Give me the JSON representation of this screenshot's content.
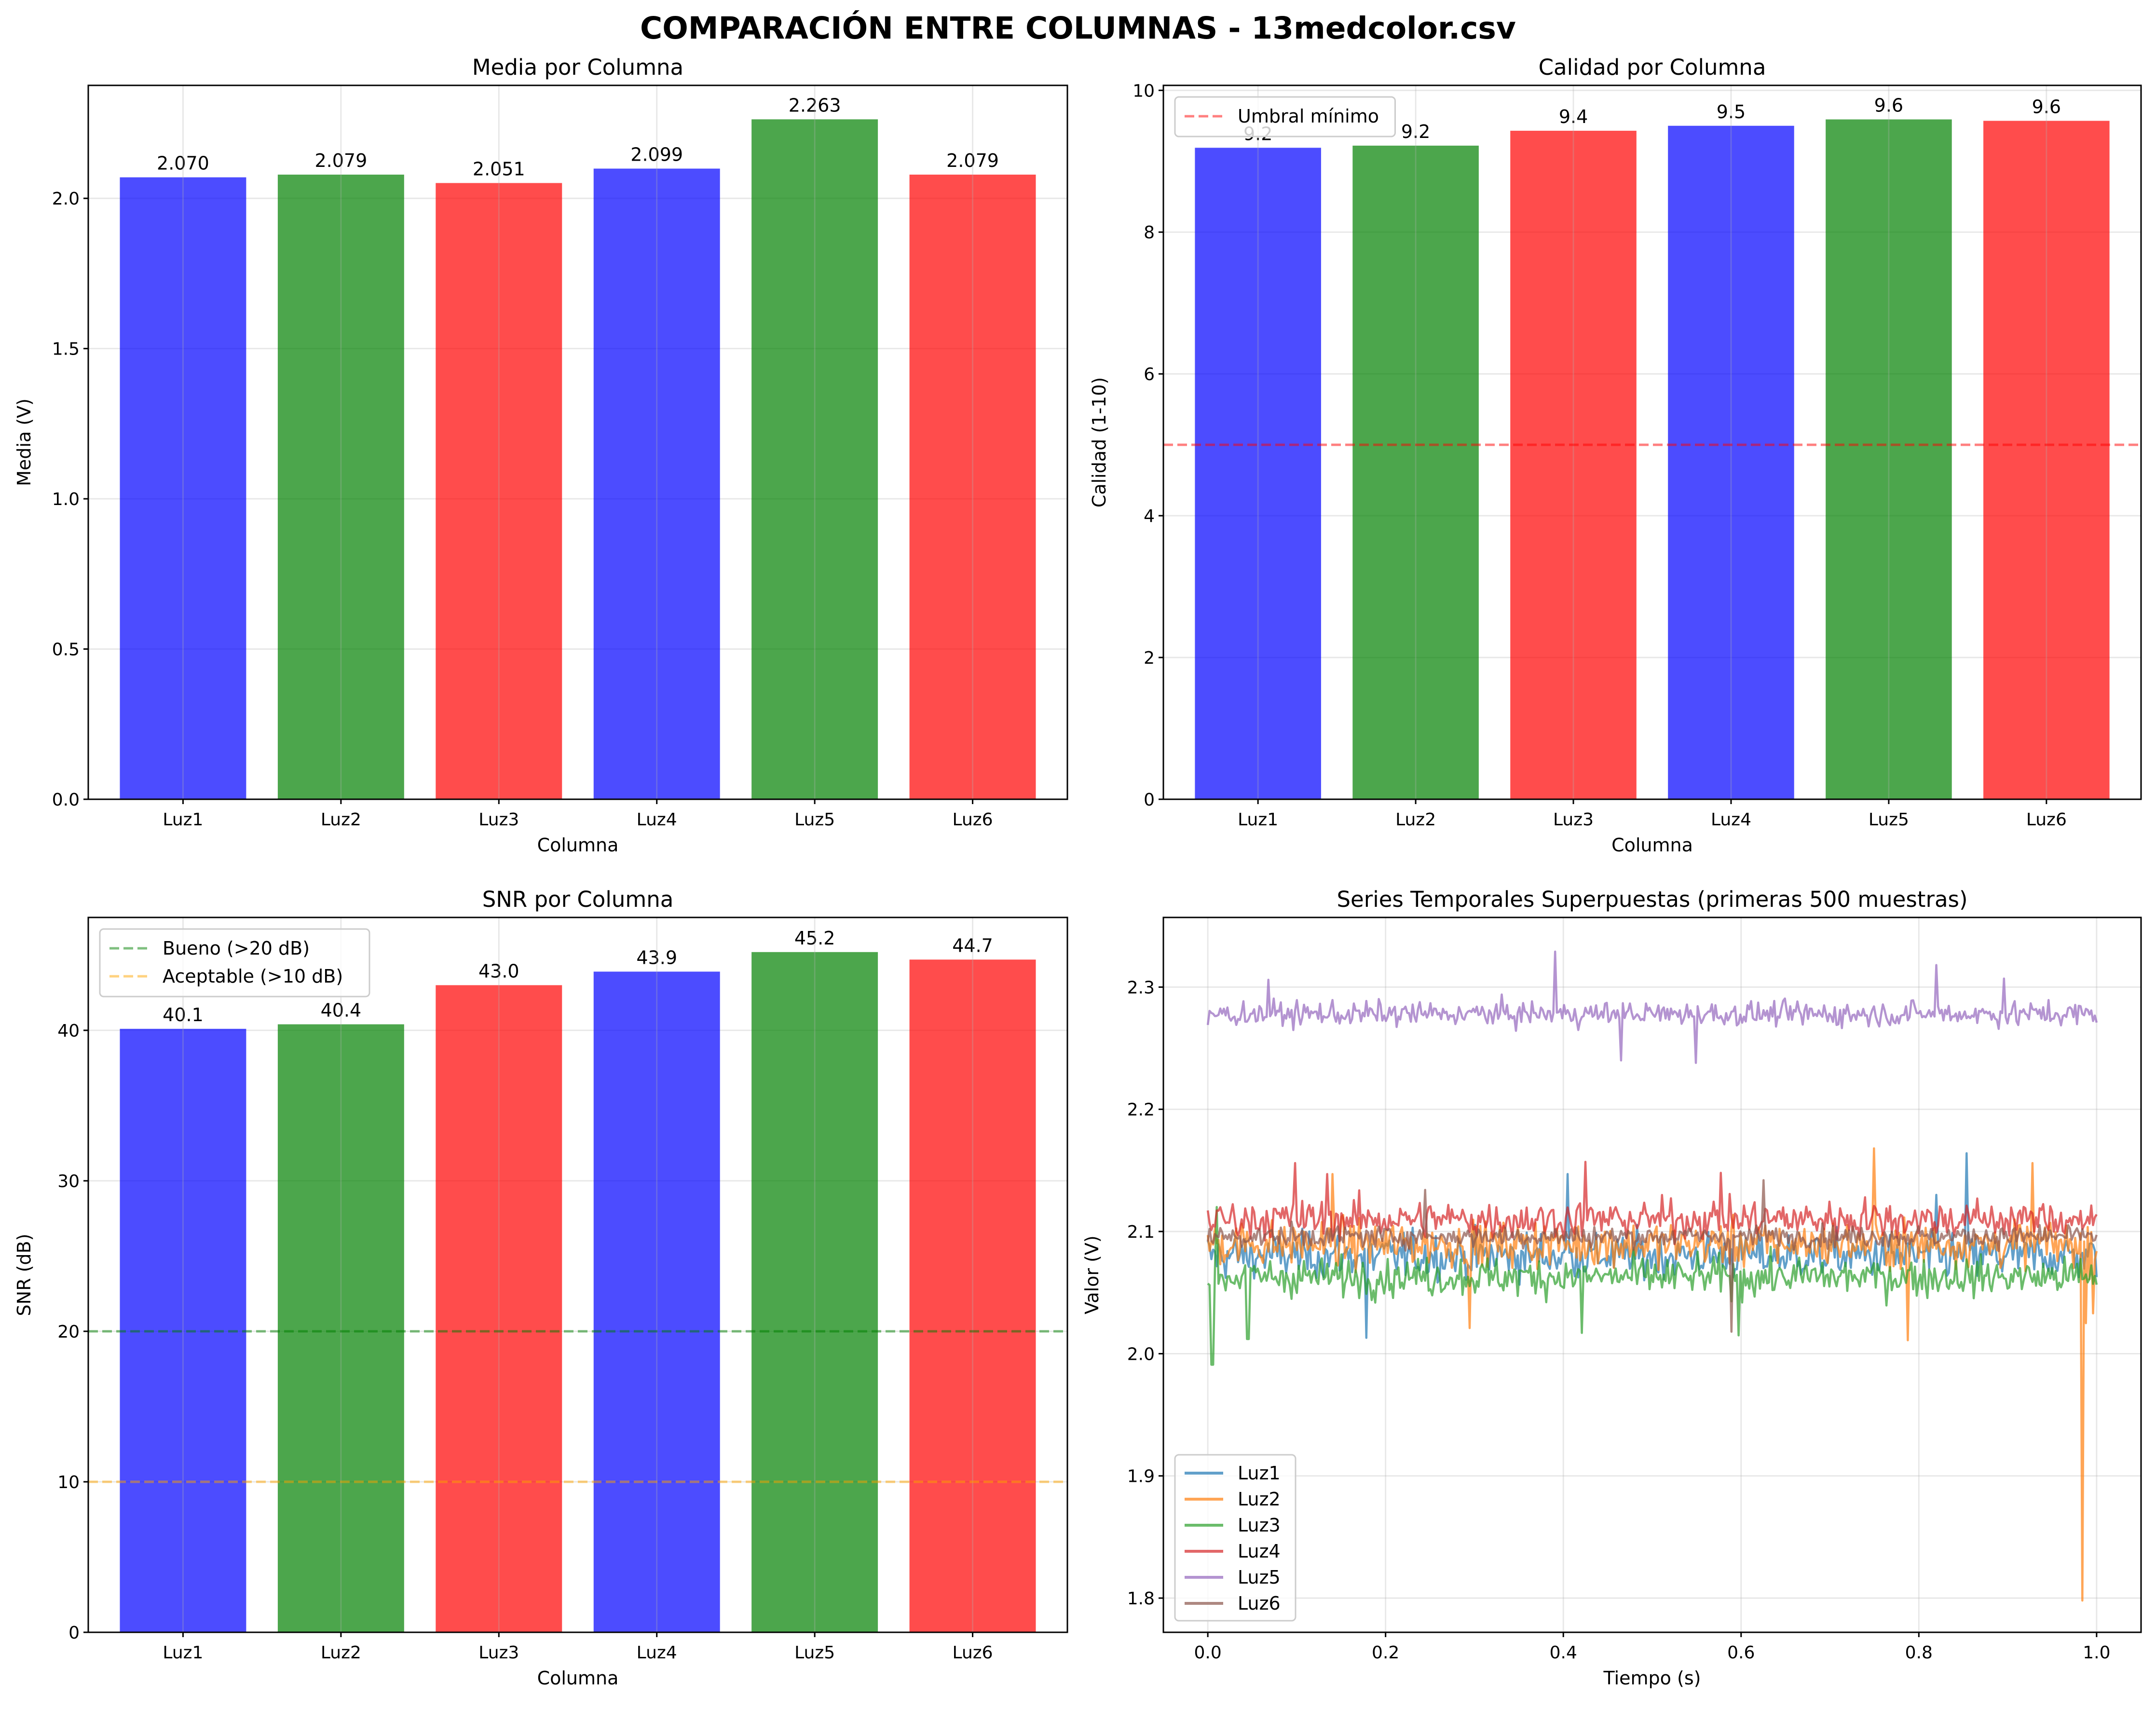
{
  "figure": {
    "title": "COMPARACIÓN ENTRE COLUMNAS - 13medcolor.csv"
  },
  "chart_data": [
    {
      "id": "media",
      "type": "bar",
      "title": "Media por Columna",
      "xlabel": "Columna",
      "ylabel": "Media (V)",
      "categories": [
        "Luz1",
        "Luz2",
        "Luz3",
        "Luz4",
        "Luz5",
        "Luz6"
      ],
      "values": [
        2.07,
        2.079,
        2.051,
        2.099,
        2.263,
        2.079
      ],
      "value_labels": [
        "2.070",
        "2.079",
        "2.051",
        "2.099",
        "2.263",
        "2.079"
      ],
      "bar_colors": [
        "#0000ff",
        "#008000",
        "#ff0000",
        "#0000ff",
        "#008000",
        "#ff0000"
      ],
      "bar_alpha": 0.7,
      "ylim": [
        0,
        2.376
      ],
      "yticks": [
        0.0,
        0.5,
        1.0,
        1.5,
        2.0
      ],
      "ytick_labels": [
        "0.0",
        "0.5",
        "1.0",
        "1.5",
        "2.0"
      ],
      "grid": true
    },
    {
      "id": "calidad",
      "type": "bar",
      "title": "Calidad por Columna",
      "xlabel": "Columna",
      "ylabel": "Calidad (1-10)",
      "categories": [
        "Luz1",
        "Luz2",
        "Luz3",
        "Luz4",
        "Luz5",
        "Luz6"
      ],
      "values": [
        9.19,
        9.22,
        9.43,
        9.5,
        9.59,
        9.57
      ],
      "value_labels": [
        "9.2",
        "9.2",
        "9.4",
        "9.5",
        "9.6",
        "9.6"
      ],
      "bar_colors": [
        "#0000ff",
        "#008000",
        "#ff0000",
        "#0000ff",
        "#008000",
        "#ff0000"
      ],
      "bar_alpha": 0.7,
      "ylim": [
        0,
        10.07
      ],
      "yticks": [
        0,
        2,
        4,
        6,
        8,
        10
      ],
      "ytick_labels": [
        "0",
        "2",
        "4",
        "6",
        "8",
        "10"
      ],
      "hlines": [
        {
          "y": 5,
          "color": "#ff0000",
          "alpha": 0.5,
          "label": "Umbral mínimo"
        }
      ],
      "legend": {
        "placement": "top-left",
        "entries": [
          "Umbral mínimo"
        ]
      },
      "grid": true
    },
    {
      "id": "snr",
      "type": "bar",
      "title": "SNR por Columna",
      "xlabel": "Columna",
      "ylabel": "SNR (dB)",
      "categories": [
        "Luz1",
        "Luz2",
        "Luz3",
        "Luz4",
        "Luz5",
        "Luz6"
      ],
      "values": [
        40.1,
        40.4,
        43.0,
        43.9,
        45.2,
        44.7
      ],
      "value_labels": [
        "40.1",
        "40.4",
        "43.0",
        "43.9",
        "45.2",
        "44.7"
      ],
      "bar_colors": [
        "#0000ff",
        "#008000",
        "#ff0000",
        "#0000ff",
        "#008000",
        "#ff0000"
      ],
      "bar_alpha": 0.7,
      "ylim": [
        0,
        47.5
      ],
      "yticks": [
        0,
        10,
        20,
        30,
        40
      ],
      "ytick_labels": [
        "0",
        "10",
        "20",
        "30",
        "40"
      ],
      "hlines": [
        {
          "y": 20,
          "color": "#008000",
          "alpha": 0.5,
          "label": "Bueno (>20 dB)"
        },
        {
          "y": 10,
          "color": "#ffa500",
          "alpha": 0.5,
          "label": "Aceptable (>10 dB)"
        }
      ],
      "legend": {
        "placement": "top-left",
        "entries": [
          "Bueno (>20 dB)",
          "Aceptable (>10 dB)"
        ]
      },
      "grid": true
    },
    {
      "id": "series",
      "type": "line",
      "title": "Series Temporales Superpuestas (primeras 500 muestras)",
      "xlabel": "Tiempo (s)",
      "ylabel": "Valor (V)",
      "xlim": [
        -0.05,
        1.05
      ],
      "ylim": [
        1.772,
        2.357
      ],
      "xticks": [
        0.0,
        0.2,
        0.4,
        0.6,
        0.8,
        1.0
      ],
      "xtick_labels": [
        "0.0",
        "0.2",
        "0.4",
        "0.6",
        "0.8",
        "1.0"
      ],
      "yticks": [
        1.8,
        1.9,
        2.0,
        2.1,
        2.2,
        2.3
      ],
      "ytick_labels": [
        "1.8",
        "1.9",
        "2.0",
        "2.1",
        "2.2",
        "2.3"
      ],
      "n_samples": 500,
      "x_range": [
        0.0,
        1.0
      ],
      "line_alpha": 0.7,
      "legend": {
        "placement": "bottom-left"
      },
      "grid": true,
      "series": [
        {
          "name": "Luz1",
          "color": "#1f77b4",
          "mean": 2.08,
          "noise": 0.013,
          "spikes": [
            [
              0.178,
              2.013
            ],
            [
              0.405,
              2.147
            ],
            [
              0.853,
              2.164
            ],
            [
              0.82,
              2.13
            ]
          ]
        },
        {
          "name": "Luz2",
          "color": "#ff7f0e",
          "mean": 2.09,
          "noise": 0.013,
          "spikes": [
            [
              0.14,
              2.147
            ],
            [
              0.295,
              2.021
            ],
            [
              0.75,
              2.168
            ],
            [
              0.787,
              2.011
            ],
            [
              0.927,
              2.156
            ],
            [
              0.984,
              1.798
            ],
            [
              0.988,
              2.025
            ],
            [
              0.996,
              2.033
            ]
          ]
        },
        {
          "name": "Luz3",
          "color": "#2ca02c",
          "mean": 2.063,
          "noise": 0.011,
          "spikes": [
            [
              0.005,
              1.991
            ],
            [
              0.01,
              2.12
            ],
            [
              0.045,
              2.012
            ],
            [
              0.42,
              2.017
            ],
            [
              0.597,
              2.015
            ]
          ]
        },
        {
          "name": "Luz4",
          "color": "#d62728",
          "mean": 2.11,
          "noise": 0.011,
          "spikes": [
            [
              0.098,
              2.156
            ],
            [
              0.135,
              2.147
            ],
            [
              0.425,
              2.157
            ],
            [
              0.578,
              2.148
            ],
            [
              0.74,
              2.128
            ]
          ]
        },
        {
          "name": "Luz5",
          "color": "#9467bd",
          "mean": 2.278,
          "noise": 0.007,
          "spikes": [
            [
              0.0,
              2.269
            ],
            [
              0.068,
              2.306
            ],
            [
              0.39,
              2.329
            ],
            [
              0.465,
              2.24
            ],
            [
              0.55,
              2.238
            ],
            [
              0.82,
              2.318
            ],
            [
              0.895,
              2.307
            ],
            [
              1.0,
              2.271
            ]
          ]
        },
        {
          "name": "Luz6",
          "color": "#8c564b",
          "mean": 2.096,
          "noise": 0.006,
          "spikes": [
            [
              0.245,
              2.134
            ],
            [
              0.59,
              2.018
            ],
            [
              0.625,
              2.142
            ]
          ]
        }
      ]
    }
  ]
}
